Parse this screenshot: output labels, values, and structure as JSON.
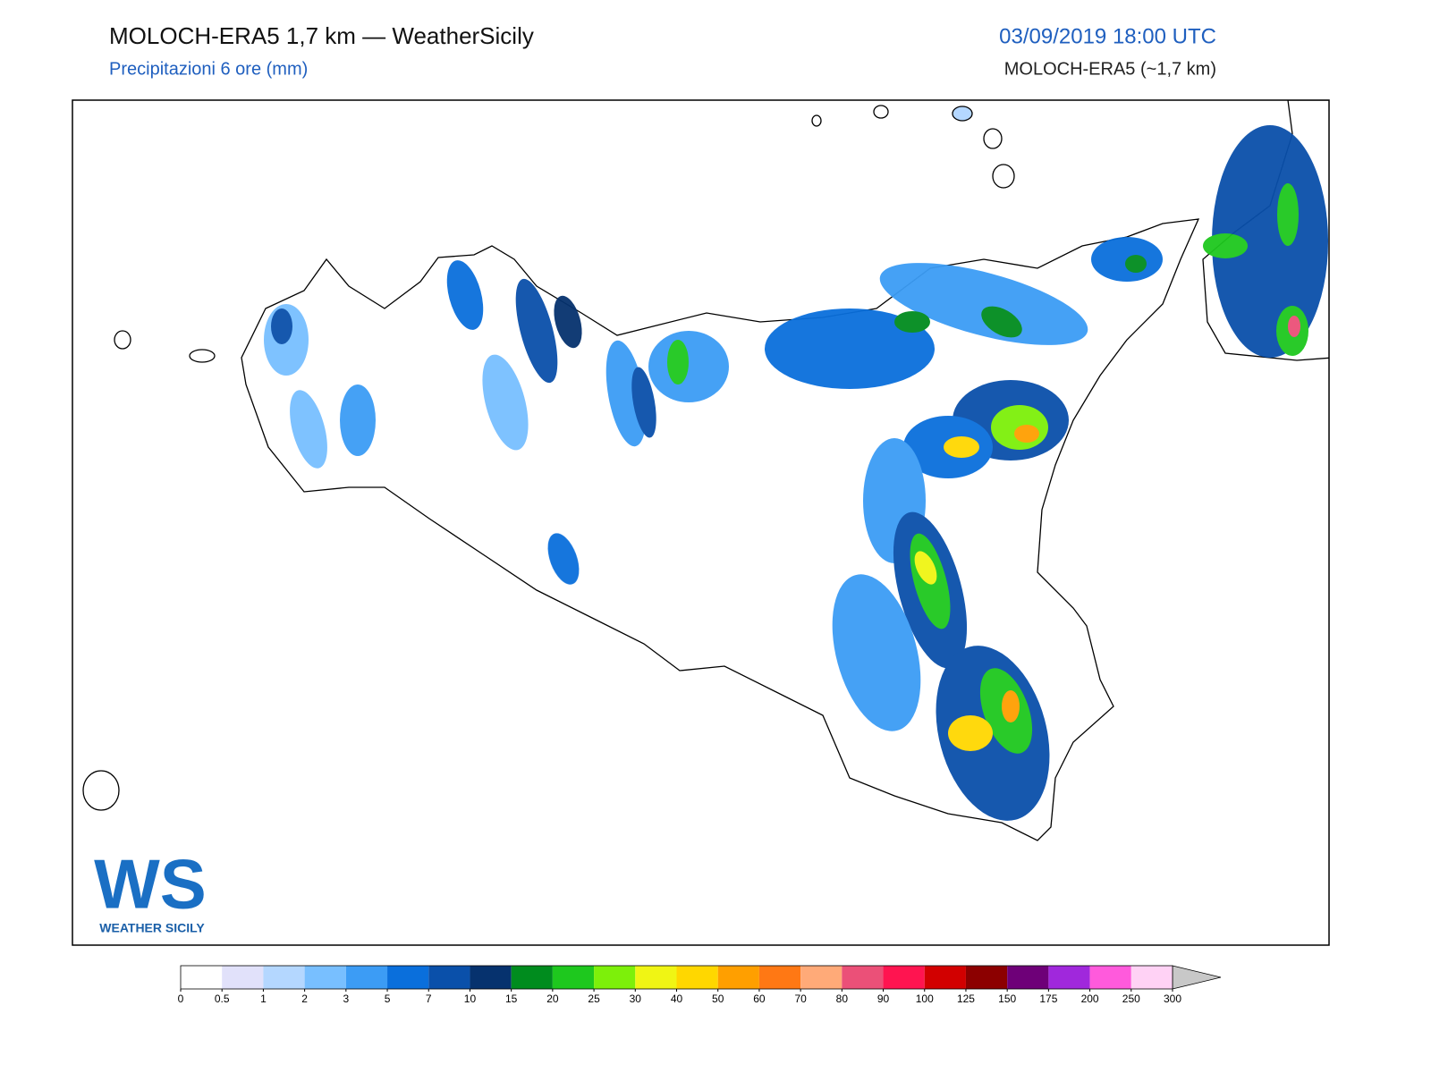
{
  "header": {
    "title": "MOLOCH-ERA5 1,7 km — WeatherSicily",
    "subtitle": "Precipitazioni 6 ore (mm)",
    "date": "03/09/2019 18:00 UTC",
    "model": "MOLOCH-ERA5 (~1,7 km)"
  },
  "logo": {
    "mark": "WS",
    "text": "WEATHER SICILY"
  },
  "colorbar": {
    "ticks": [
      0,
      0.5,
      1,
      2,
      3,
      5,
      7,
      10,
      15,
      20,
      25,
      30,
      40,
      50,
      60,
      70,
      80,
      90,
      100,
      125,
      150,
      175,
      200,
      250,
      300
    ],
    "colors": [
      "#ffffff",
      "#e1e1fa",
      "#b4d7ff",
      "#78bfff",
      "#3c9cf5",
      "#0a6fdc",
      "#0a50aa",
      "#06326e",
      "#008c1e",
      "#1ec81e",
      "#7df00a",
      "#f0f514",
      "#ffd700",
      "#ff9f00",
      "#ff7814",
      "#ffaa78",
      "#eb5078",
      "#ff1450",
      "#d20000",
      "#8c0000",
      "#6e0078",
      "#a028dc",
      "#ff5adc",
      "#ffd2f5"
    ]
  }
}
